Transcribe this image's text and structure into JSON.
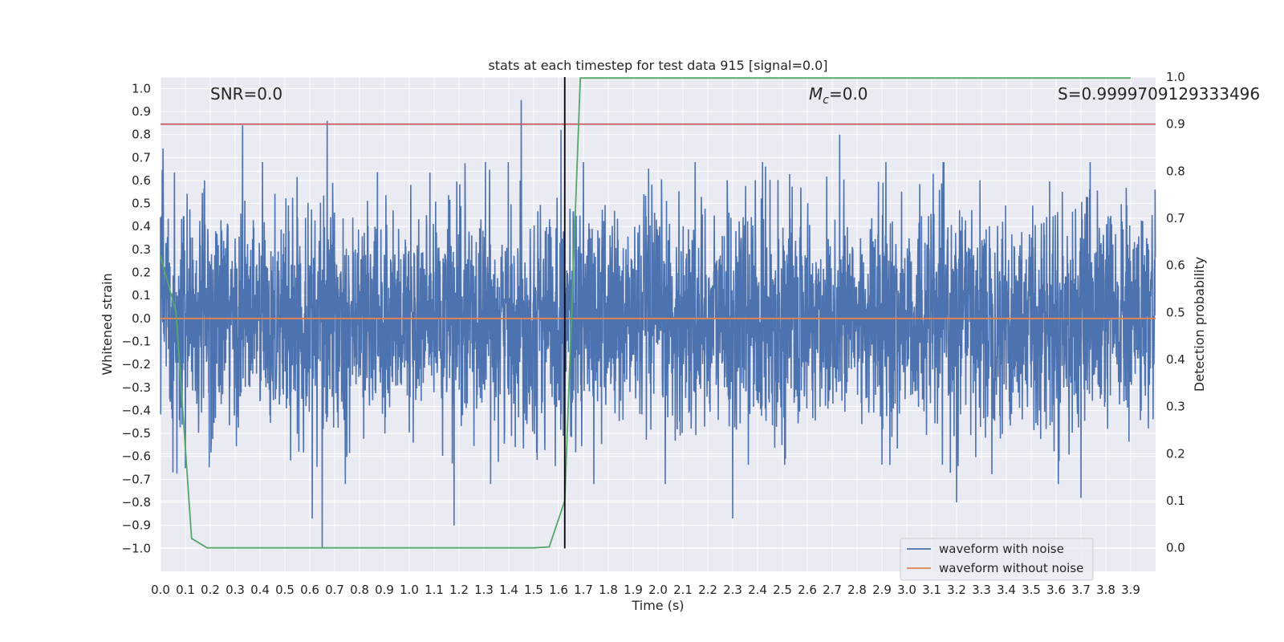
{
  "chart_data": {
    "type": "line",
    "title": "stats at each timestep for test data 915 [signal=0.0]",
    "xlabel": "Time (s)",
    "ylabel": "Whitened strain",
    "y2label": "Detection probability",
    "xlim": [
      0.0,
      4.0
    ],
    "ylim": [
      -1.1,
      1.05
    ],
    "y2lim": [
      -0.05,
      1.0
    ],
    "xticks": [
      "0.0",
      "0.1",
      "0.2",
      "0.3",
      "0.4",
      "0.5",
      "0.6",
      "0.7",
      "0.8",
      "0.9",
      "1.0",
      "1.1",
      "1.2",
      "1.3",
      "1.4",
      "1.5",
      "1.6",
      "1.7",
      "1.8",
      "1.9",
      "2.0",
      "2.1",
      "2.2",
      "2.3",
      "2.4",
      "2.5",
      "2.6",
      "2.7",
      "2.8",
      "2.9",
      "3.0",
      "3.1",
      "3.2",
      "3.3",
      "3.4",
      "3.5",
      "3.6",
      "3.7",
      "3.8",
      "3.9"
    ],
    "yticks": [
      "1.0",
      "0.9",
      "0.8",
      "0.7",
      "0.6",
      "0.5",
      "0.4",
      "0.3",
      "0.2",
      "0.1",
      "0.0",
      "−0.1",
      "−0.2",
      "−0.3",
      "−0.4",
      "−0.5",
      "−0.6",
      "−0.7",
      "−0.8",
      "−0.9",
      "−1.0"
    ],
    "y2ticks": [
      "1.0",
      "0.9",
      "0.8",
      "0.7",
      "0.6",
      "0.5",
      "0.4",
      "0.3",
      "0.2",
      "0.1",
      "0.0"
    ],
    "grid": true,
    "annotations": {
      "snr": "SNR=0.0",
      "mc_symbol": "M",
      "mc_sub": "c",
      "mc_value": "=0.0",
      "s": "S=0.9999709129333496"
    },
    "threshold_y2": 0.9,
    "marker_x": 1.625,
    "series": [
      {
        "name": "waveform with noise",
        "color": "#4c72b0",
        "note_summary": "dense noise samples, sampled at high rate",
        "peaks": [
          {
            "x": 0.01,
            "y": 0.74
          },
          {
            "x": 0.33,
            "y": 0.84
          },
          {
            "x": 0.67,
            "y": 0.86
          },
          {
            "x": 1.45,
            "y": 0.95
          },
          {
            "x": 1.61,
            "y": 0.82
          },
          {
            "x": 2.3,
            "y": 0.83
          },
          {
            "x": 2.73,
            "y": 0.8
          },
          {
            "x": 0.65,
            "y": -1.0
          },
          {
            "x": 0.61,
            "y": -0.87
          },
          {
            "x": 1.18,
            "y": -0.9
          },
          {
            "x": 2.3,
            "y": -0.87
          },
          {
            "x": 3.2,
            "y": -0.8
          },
          {
            "x": 3.7,
            "y": -0.78
          },
          {
            "x": 0.05,
            "y": -0.67
          }
        ]
      },
      {
        "name": "waveform without noise",
        "color": "#dd8452",
        "x": [
          0.0,
          4.0
        ],
        "y": [
          0.0,
          0.0
        ]
      },
      {
        "name": "detection probability",
        "color": "#55a868",
        "axis": "y2",
        "x": [
          0.0,
          0.0625,
          0.125,
          0.1875,
          0.25,
          0.5,
          1.0,
          1.25,
          1.5,
          1.5625,
          1.625,
          1.6875,
          1.75,
          2.0,
          3.0,
          3.9
        ],
        "y": [
          0.62,
          0.5,
          0.02,
          0.0,
          0.0,
          0.0,
          0.0,
          0.0,
          0.0,
          0.002,
          0.1,
          0.998,
          0.998,
          0.998,
          0.998,
          0.998
        ]
      }
    ],
    "legend": {
      "placement": "lower-right",
      "entries": [
        {
          "label": "waveform with noise",
          "color": "#4c72b0"
        },
        {
          "label": "waveform without noise",
          "color": "#dd8452"
        }
      ]
    },
    "colors": {
      "background": "#eaeaf2",
      "grid": "#ffffff",
      "threshold": "#c44e52",
      "marker": "#000000"
    }
  }
}
